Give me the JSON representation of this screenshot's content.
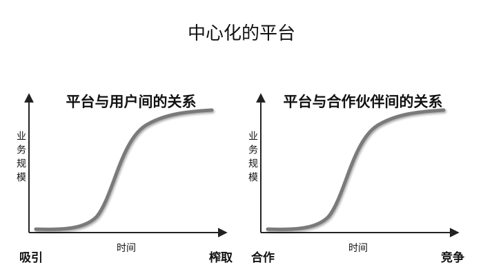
{
  "title": "中心化的平台",
  "panels": [
    {
      "title": "平台与用户间的关系",
      "y_label": "业务规模",
      "x_label": "时间",
      "left_label": "吸引",
      "right_label": "榨取"
    },
    {
      "title": "平台与合作伙伴间的关系",
      "y_label": "业务规模",
      "x_label": "时间",
      "left_label": "合作",
      "right_label": "竞争"
    }
  ]
}
